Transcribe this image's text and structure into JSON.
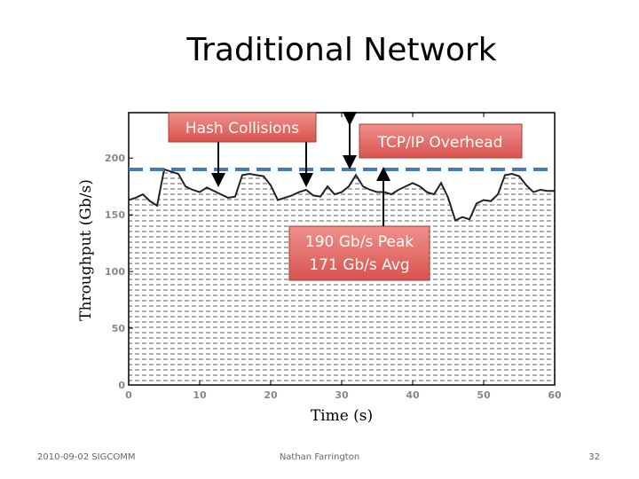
{
  "chart_data": {
    "type": "area",
    "title": "Traditional Network",
    "xlabel": "Time (s)",
    "ylabel": "Throughput (Gb/s)",
    "x": [
      0,
      1,
      2,
      3,
      4,
      5,
      6,
      7,
      8,
      9,
      10,
      11,
      12,
      13,
      14,
      15,
      16,
      17,
      18,
      19,
      20,
      21,
      22,
      23,
      24,
      25,
      26,
      27,
      28,
      29,
      30,
      31,
      32,
      33,
      34,
      35,
      36,
      37,
      38,
      39,
      40,
      41,
      42,
      43,
      44,
      45,
      46,
      47,
      48,
      49,
      50,
      51,
      52,
      53,
      54,
      55,
      56,
      57,
      58,
      59,
      60
    ],
    "values": [
      163,
      165,
      168,
      162,
      158,
      190,
      188,
      186,
      175,
      172,
      170,
      174,
      171,
      168,
      165,
      166,
      185,
      186,
      185,
      184,
      176,
      163,
      165,
      167,
      170,
      172,
      167,
      166,
      175,
      168,
      170,
      175,
      185,
      175,
      172,
      170,
      170,
      168,
      172,
      175,
      178,
      175,
      170,
      168,
      178,
      165,
      145,
      148,
      146,
      160,
      163,
      162,
      168,
      185,
      186,
      184,
      176,
      170,
      172,
      171,
      171
    ],
    "color": "#222222",
    "hline": 190,
    "hline_color": "#4a7ab5",
    "xlim": [
      0,
      60
    ],
    "xticks": [
      0,
      10,
      20,
      30,
      40,
      50,
      60
    ],
    "ylim": [
      0,
      240
    ],
    "yticks": [
      0,
      50,
      100,
      150,
      200
    ],
    "annotations": [
      "Hash Collisions",
      "TCP/IP Overhead",
      "190 Gb/s Peak",
      "171 Gb/s Avg"
    ]
  },
  "footer": {
    "left": "2010-09-02 SIGCOMM",
    "center": "Nathan Farrington",
    "right": "32"
  }
}
